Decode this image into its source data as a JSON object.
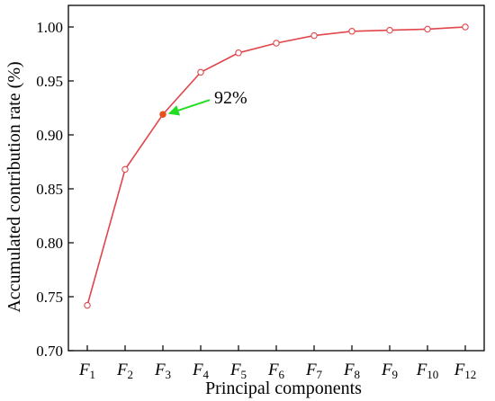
{
  "chart_data": {
    "type": "line",
    "categories": [
      {
        "main": "F",
        "sub": "1"
      },
      {
        "main": "F",
        "sub": "2"
      },
      {
        "main": "F",
        "sub": "3"
      },
      {
        "main": "F",
        "sub": "4"
      },
      {
        "main": "F",
        "sub": "5"
      },
      {
        "main": "F",
        "sub": "6"
      },
      {
        "main": "F",
        "sub": "7"
      },
      {
        "main": "F",
        "sub": "8"
      },
      {
        "main": "F",
        "sub": "9"
      },
      {
        "main": "F",
        "sub": "10"
      },
      {
        "main": "F",
        "sub": "12"
      }
    ],
    "values": [
      0.742,
      0.868,
      0.919,
      0.958,
      0.976,
      0.985,
      0.992,
      0.996,
      0.997,
      0.998,
      1.0
    ],
    "xlabel": "Principal components",
    "ylabel": "Accumulated contribution rate (%)",
    "ylim": [
      0.7,
      1.02
    ],
    "yticks": [
      "0.70",
      "0.75",
      "0.80",
      "0.85",
      "0.90",
      "0.95",
      "1.00"
    ],
    "grid": false,
    "highlight_index": 2,
    "annotation": {
      "text": "92%",
      "target_index": 2
    },
    "colors": {
      "line": "#e0464b",
      "marker_fill": "#ffffff",
      "highlight": "#e8501e",
      "arrow": "#22dd22",
      "axis": "#000000"
    }
  }
}
